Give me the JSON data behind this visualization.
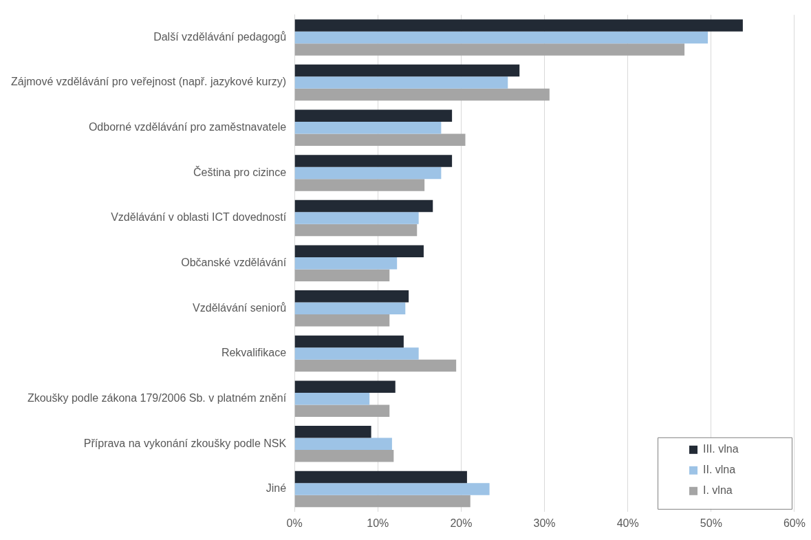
{
  "chart_data": {
    "type": "bar",
    "orientation": "horizontal",
    "categories": [
      "Další vzdělávání pedagogů",
      "Zájmové vzdělávání pro veřejnost (např. jazykové kurzy)",
      "Odborné vzdělávání pro zaměstnavatele",
      "Čeština pro cizince",
      "Vzdělávání v oblasti ICT dovedností",
      "Občanské vzdělávání",
      "Vzdělávání seniorů",
      "Rekvalifikace",
      "Zkoušky podle zákona 179/2006 Sb. v platném znění",
      "Příprava na vykonání zkoušky podle NSK",
      "Jiné"
    ],
    "series": [
      {
        "name": "III. vlna",
        "color": "#222a35",
        "values": [
          53.8,
          27.0,
          18.9,
          18.9,
          16.6,
          15.5,
          13.7,
          13.1,
          12.1,
          9.2,
          20.7
        ]
      },
      {
        "name": "II. vlna",
        "color": "#9dc3e6",
        "values": [
          49.6,
          25.6,
          17.6,
          17.6,
          14.9,
          12.3,
          13.3,
          14.9,
          9.0,
          11.7,
          23.4
        ]
      },
      {
        "name": "I. vlna",
        "color": "#a5a5a5",
        "values": [
          46.8,
          30.6,
          20.5,
          15.6,
          14.7,
          11.4,
          11.4,
          19.4,
          11.4,
          11.9,
          21.1
        ]
      }
    ],
    "xlim": [
      0,
      60
    ],
    "xticks": [
      {
        "value": 0,
        "label": "0%"
      },
      {
        "value": 10,
        "label": "10%"
      },
      {
        "value": 20,
        "label": "20%"
      },
      {
        "value": 30,
        "label": "30%"
      },
      {
        "value": 40,
        "label": "40%"
      },
      {
        "value": 50,
        "label": "50%"
      },
      {
        "value": 60,
        "label": "60%"
      }
    ],
    "grid": "x",
    "legend": "bottom right"
  }
}
